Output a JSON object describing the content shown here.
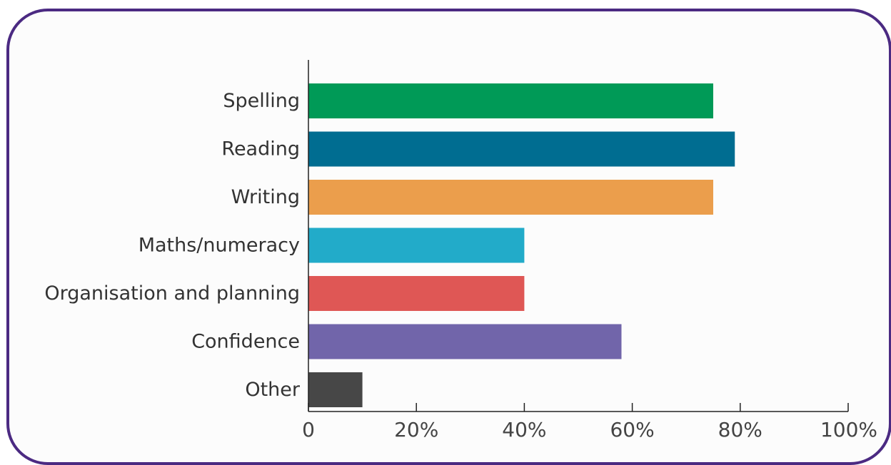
{
  "colors": {
    "frame_border": "#4b2a82",
    "axis": "#222222"
  },
  "chart_data": {
    "type": "bar",
    "orientation": "horizontal",
    "title": "",
    "xlabel": "",
    "ylabel": "",
    "categories": [
      "Spelling",
      "Reading",
      "Writing",
      "Maths/numeracy",
      "Organisation and planning",
      "Confidence",
      "Other"
    ],
    "values": [
      75,
      79,
      75,
      40,
      40,
      58,
      10
    ],
    "colors": [
      "#009a57",
      "#006d91",
      "#eb9e4c",
      "#22abc9",
      "#df5755",
      "#7165aa",
      "#474747"
    ],
    "xlim": [
      0,
      100
    ],
    "x_ticks": [
      0,
      20,
      40,
      60,
      80,
      100
    ],
    "x_tick_labels": [
      "0",
      "20%",
      "40%",
      "60%",
      "80%",
      "100%"
    ],
    "grid": false,
    "legend": "none"
  }
}
